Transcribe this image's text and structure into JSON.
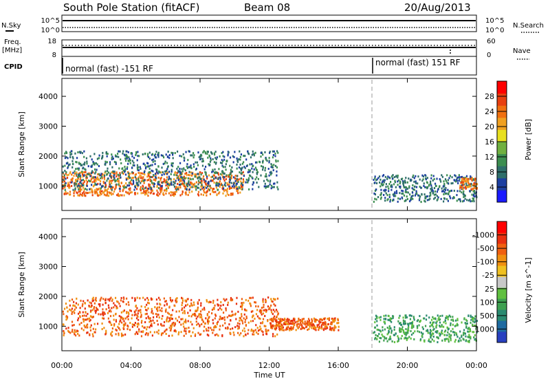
{
  "header": {
    "station": "South Pole Station (fitACF)",
    "beam": "Beam 08",
    "date": "20/Aug/2013"
  },
  "noise_panel": {
    "left_label": "N.Sky",
    "right_label": "N.Search",
    "left_ticks": [
      "10^5",
      "10^0"
    ],
    "right_ticks": [
      "10^5",
      "10^0"
    ]
  },
  "freq_panel": {
    "left_label_line1": "Freq.",
    "left_label_line2": "[MHz]",
    "right_label": "Nave",
    "left_ticks": [
      "18",
      "8"
    ],
    "right_ticks": [
      "60",
      "0"
    ]
  },
  "cpid_panel": {
    "label": "CPID",
    "segments": [
      "normal (fast) -151 RF",
      "normal (fast) 151 RF"
    ]
  },
  "x_axis": {
    "label": "Time UT",
    "ticks": [
      "00:00",
      "04:00",
      "08:00",
      "12:00",
      "16:00",
      "20:00",
      "00:00"
    ]
  },
  "power_colorbar": {
    "label": "Power [dB]",
    "ticks": [
      "4",
      "8",
      "12",
      "16",
      "20",
      "24",
      "28"
    ],
    "colors": [
      "#1a1aff",
      "#1c3fa0",
      "#2e6e6a",
      "#3c8e50",
      "#70b040",
      "#e8e020",
      "#f0a020",
      "#f07010",
      "#e84010",
      "#ff0000"
    ]
  },
  "velocity_colorbar": {
    "label": "Velocity [m s^-1]",
    "ticks": [
      "1000",
      "500",
      "100",
      "25",
      "-25",
      "-100",
      "-500",
      "-1000"
    ],
    "colors": [
      "#2840c0",
      "#1e6aa0",
      "#2a8a70",
      "#3ea050",
      "#60c040",
      "#c8c8c8",
      "#f0c020",
      "#f09010",
      "#f06010",
      "#e83010",
      "#ff0000"
    ]
  },
  "chart_data": [
    {
      "type": "heatmap",
      "title": "",
      "xlabel": "Time UT",
      "ylabel": "Slant Range [km]",
      "xlim": [
        "00:00",
        "24:00"
      ],
      "ylim": [
        180,
        4600
      ],
      "y_ticks": [
        1000,
        2000,
        3000,
        4000
      ],
      "colorbar": "Power [dB]",
      "grid": false,
      "features": [
        {
          "time_range": [
            "00:00",
            "10:30"
          ],
          "range_km": [
            700,
            1500
          ],
          "power_db": 26
        },
        {
          "time_range": [
            "00:00",
            "12:30"
          ],
          "range_km": [
            900,
            2200
          ],
          "power_db": 6
        },
        {
          "time_range": [
            "18:00",
            "24:00"
          ],
          "range_km": [
            500,
            1400
          ],
          "power_db": 6
        },
        {
          "time_range": [
            "23:00",
            "24:00"
          ],
          "range_km": [
            900,
            1300
          ],
          "power_db": 24
        }
      ]
    },
    {
      "type": "heatmap",
      "title": "",
      "xlabel": "Time UT",
      "ylabel": "Slant Range [km]",
      "xlim": [
        "00:00",
        "24:00"
      ],
      "ylim": [
        180,
        4600
      ],
      "y_ticks": [
        1000,
        2000,
        3000,
        4000
      ],
      "colorbar": "Velocity [m s^-1]",
      "grid": false,
      "features": [
        {
          "time_range": [
            "00:00",
            "12:30"
          ],
          "range_km": [
            700,
            2000
          ],
          "velocity_ms": -150
        },
        {
          "time_range": [
            "12:00",
            "16:00"
          ],
          "range_km": [
            900,
            1300
          ],
          "velocity_ms": -120
        },
        {
          "time_range": [
            "18:00",
            "24:00"
          ],
          "range_km": [
            500,
            1400
          ],
          "velocity_ms": 60
        }
      ]
    }
  ]
}
